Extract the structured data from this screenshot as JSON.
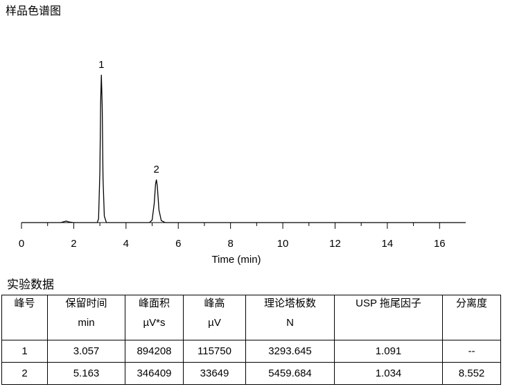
{
  "chart_data": {
    "type": "line",
    "title": "样品色谱图",
    "x_label": "Time (min)",
    "x": [
      0,
      1.5,
      1.65,
      1.72,
      1.8,
      2.0,
      2.9,
      2.95,
      3.0,
      3.03,
      3.057,
      3.09,
      3.12,
      3.17,
      3.25,
      4.9,
      5.0,
      5.08,
      5.13,
      5.163,
      5.2,
      5.26,
      5.35,
      5.5,
      17
    ],
    "series": [
      {
        "color": "#000000",
        "values": [
          0,
          0,
          800,
          1200,
          500,
          0,
          0,
          3000,
          40000,
          95000,
          115750,
          90000,
          35000,
          5000,
          0,
          0,
          2000,
          15000,
          30000,
          33649,
          28000,
          10000,
          1500,
          0,
          0
        ]
      }
    ],
    "peak_labels": [
      {
        "label": "1",
        "x": 3.057,
        "y": 115750
      },
      {
        "label": "2",
        "x": 5.163,
        "y": 33649
      }
    ],
    "xlim": [
      0,
      17
    ],
    "xticks": [
      0,
      2,
      4,
      6,
      8,
      10,
      12,
      14,
      16
    ],
    "xminorticks": [
      1,
      3,
      5,
      7,
      9,
      11,
      13,
      15
    ],
    "ylim": [
      0,
      120000
    ]
  },
  "table": {
    "title": "实验数据",
    "columns": [
      [
        "峰号"
      ],
      [
        "保留时间",
        "min"
      ],
      [
        "峰面积",
        "µV*s"
      ],
      [
        "峰高",
        "µV"
      ],
      [
        "理论塔板数",
        "N"
      ],
      [
        "USP 拖尾因子"
      ],
      [
        "分离度"
      ]
    ],
    "rows": [
      [
        "1",
        "3.057",
        "894208",
        "115750",
        "3293.645",
        "1.091",
        "--"
      ],
      [
        "2",
        "5.163",
        "346409",
        "33649",
        "5459.684",
        "1.034",
        "8.552"
      ]
    ]
  }
}
